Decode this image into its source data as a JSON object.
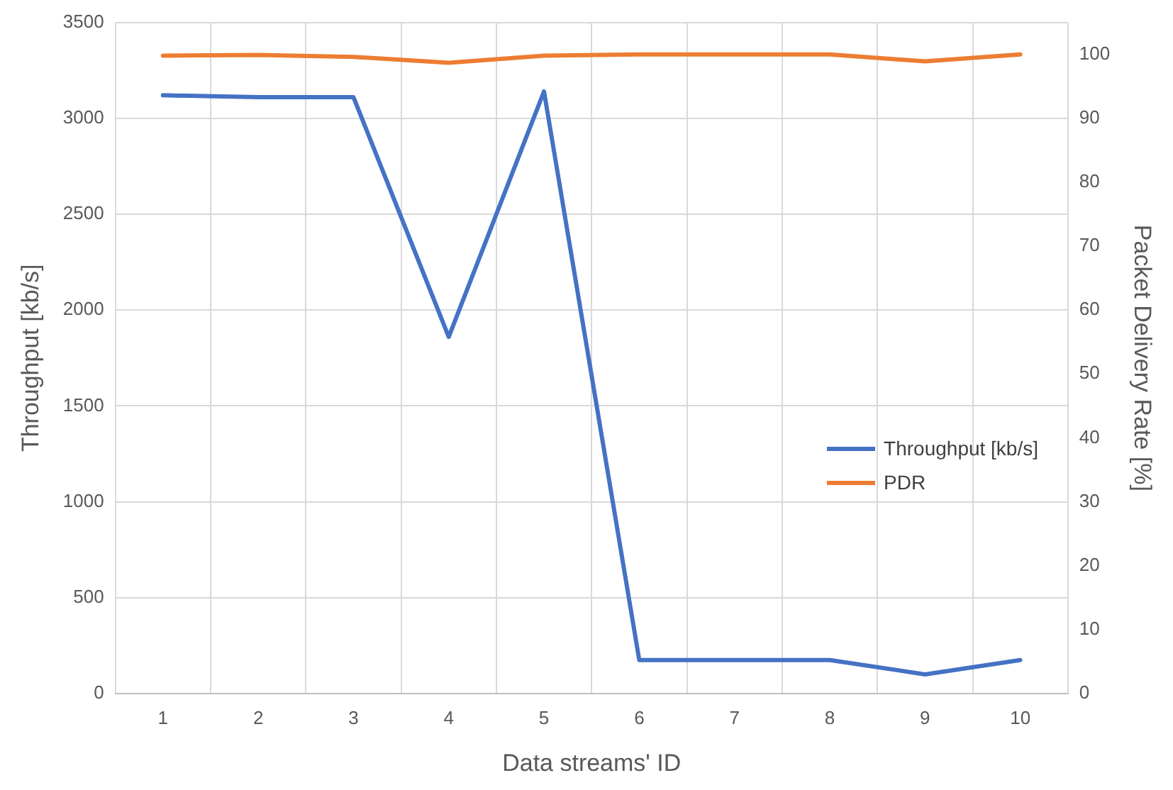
{
  "chart_data": {
    "type": "line",
    "xlabel": "Data streams' ID",
    "ylabel": "Throughput [kb/s]",
    "y2label": "Packet Delivery Rate [%]",
    "categories": [
      "1",
      "2",
      "3",
      "4",
      "5",
      "6",
      "7",
      "8",
      "9",
      "10"
    ],
    "series": [
      {
        "name": "Throughput [kb/s]",
        "color": "#4472c4",
        "values": [
          3120,
          3110,
          3110,
          1860,
          3140,
          175,
          175,
          175,
          100,
          175
        ]
      },
      {
        "name": "PDR",
        "color": "#ed7d31",
        "axis": "y2",
        "values": [
          99.8,
          99.9,
          99.6,
          98.7,
          99.8,
          100,
          100,
          100,
          98.9,
          100
        ]
      }
    ],
    "ylim": [
      0,
      3500
    ],
    "yticks": [
      0,
      500,
      1000,
      1500,
      2000,
      2500,
      3000,
      3500
    ],
    "y2lim": [
      0,
      105
    ],
    "y2ticks": [
      0,
      10,
      20,
      30,
      40,
      50,
      60,
      70,
      80,
      90,
      100
    ],
    "grid": true,
    "legend": "right",
    "marker": "none",
    "line_style": "solid"
  }
}
